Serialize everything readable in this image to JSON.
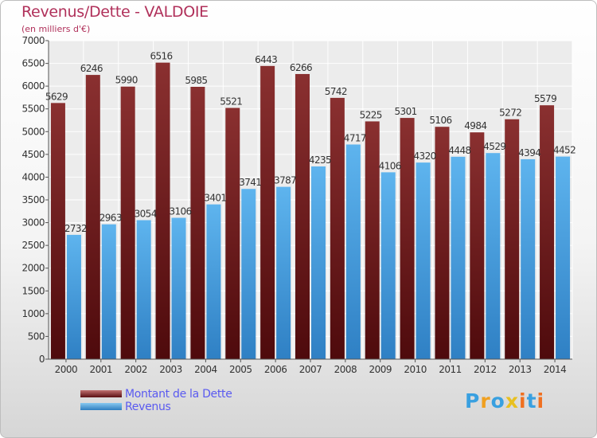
{
  "header": {
    "title": "Revenus/Dette - VALDOIE",
    "subtitle": "(en milliers d'€)"
  },
  "chart_data": {
    "type": "bar",
    "title": "Revenus/Dette - VALDOIE",
    "subtitle": "(en milliers d'€)",
    "categories": [
      "2000",
      "2001",
      "2002",
      "2003",
      "2004",
      "2005",
      "2006",
      "2007",
      "2008",
      "2009",
      "2010",
      "2011",
      "2012",
      "2013",
      "2014"
    ],
    "series": [
      {
        "name": "Montant de la Dette",
        "color": "#6e1518",
        "values": [
          5629,
          6246,
          5990,
          6516,
          5985,
          5521,
          6443,
          6266,
          5742,
          5225,
          5301,
          5106,
          4984,
          5272,
          5579
        ]
      },
      {
        "name": "Revenus",
        "color": "#4aa6e6",
        "values": [
          2732,
          2963,
          3054,
          3106,
          3401,
          3741,
          3787,
          4235,
          4717,
          4106,
          4320,
          4448,
          4529,
          4394,
          4452
        ]
      }
    ],
    "yticks": [
      0,
      500,
      1000,
      1500,
      2000,
      2500,
      3000,
      3500,
      4000,
      4500,
      5000,
      5500,
      6000,
      6500,
      7000
    ],
    "ylim": [
      0,
      7000
    ],
    "grid": true,
    "legend_position": "bottom-left"
  },
  "legend": {
    "items": [
      {
        "label": "Montant de la Dette"
      },
      {
        "label": "Revenus"
      }
    ]
  },
  "brand": {
    "letters": [
      "P",
      "r",
      "o",
      "x",
      "i",
      "t",
      "i"
    ],
    "colors": [
      "#39a0e0",
      "#f0a020",
      "#39a0e0",
      "#e8c020",
      "#f07020",
      "#39a0e0",
      "#f07020"
    ]
  }
}
